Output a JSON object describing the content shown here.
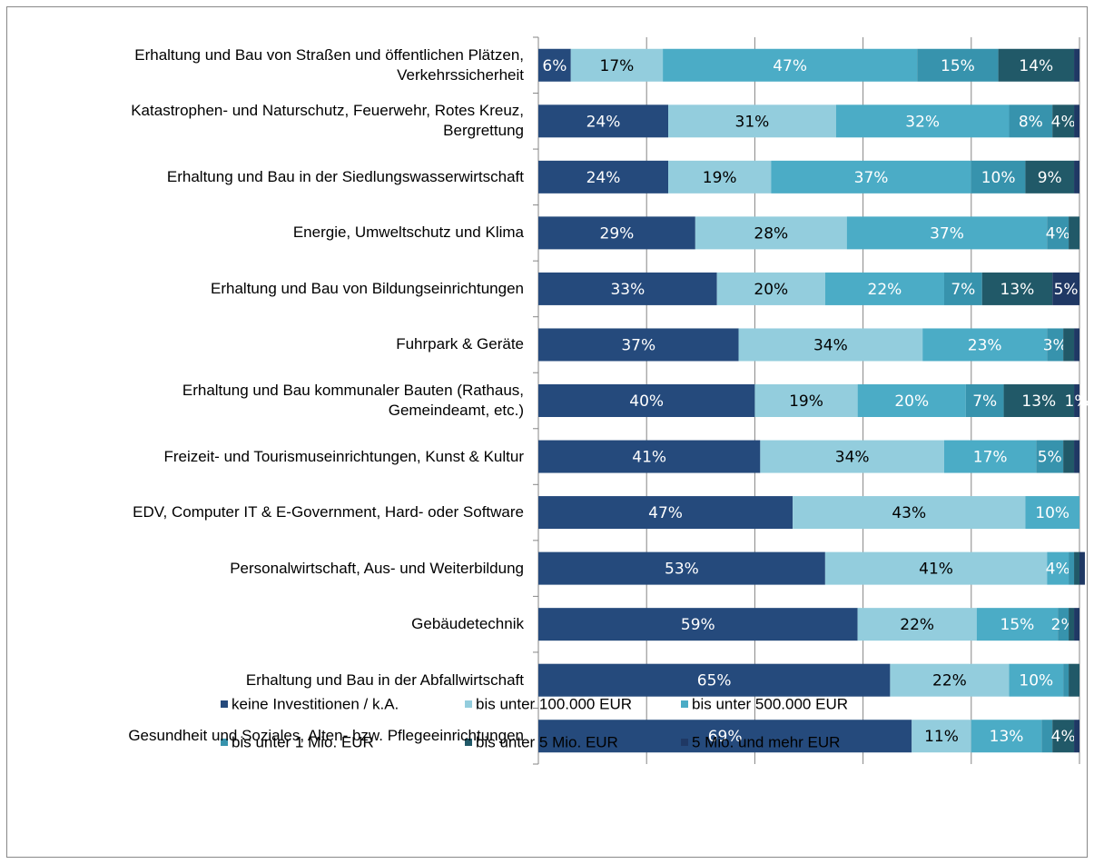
{
  "chart_data": {
    "type": "stacked_barh",
    "categories": [
      "Erhaltung und Bau von Straßen und öffentlichen Plätzen,\nVerkehrssicherheit",
      "Katastrophen- und Naturschutz, Feuerwehr, Rotes Kreuz,\nBergrettung",
      "Erhaltung und Bau in der Siedlungswasserwirtschaft",
      "Energie, Umweltschutz und Klima",
      "Erhaltung und Bau von Bildungseinrichtungen",
      "Fuhrpark & Geräte",
      "Erhaltung und Bau kommunaler Bauten (Rathaus,\nGemeindeamt, etc.)",
      "Freizeit- und Tourismuseinrichtungen, Kunst & Kultur",
      "EDV, Computer IT & E-Government, Hard- oder Software",
      "Personalwirtschaft, Aus- und Weiterbildung",
      "Gebäudetechnik",
      "Erhaltung und Bau in der Abfallwirtschaft",
      "Gesundheit und Soziales, Alten- bzw. Pflegeeinrichtungen"
    ],
    "series": [
      {
        "name": "keine Investitionen / k.A.",
        "color": "#254a7c",
        "values": [
          6,
          24,
          24,
          29,
          33,
          37,
          40,
          41,
          47,
          53,
          59,
          65,
          69
        ],
        "value_labels": [
          "6%",
          "24%",
          "24%",
          "29%",
          "33%",
          "37%",
          "40%",
          "41%",
          "47%",
          "53%",
          "59%",
          "65%",
          "69%"
        ]
      },
      {
        "name": "bis unter 100.000 EUR",
        "color": "#93cddd",
        "values": [
          17,
          31,
          19,
          28,
          20,
          34,
          19,
          34,
          43,
          41,
          22,
          22,
          11
        ],
        "value_labels": [
          "17%",
          "31%",
          "19%",
          "28%",
          "20%",
          "34%",
          "19%",
          "34%",
          "43%",
          "41%",
          "22%",
          "22%",
          "11%"
        ]
      },
      {
        "name": "bis unter 500.000 EUR",
        "color": "#4bacc6",
        "values": [
          47,
          32,
          37,
          37,
          22,
          23,
          20,
          17,
          10,
          4,
          15,
          10,
          13
        ],
        "value_labels": [
          "47%",
          "32%",
          "37%",
          "37%",
          "22%",
          "23%",
          "20%",
          "17%",
          "10%",
          "4%",
          "15%",
          "10%",
          "13%"
        ]
      },
      {
        "name": "bis unter 1 Mio. EUR",
        "color": "#3793ad",
        "values": [
          15,
          8,
          10,
          4,
          7,
          3,
          7,
          5,
          0,
          1,
          2,
          1,
          2
        ],
        "value_labels": [
          "15%",
          "8%",
          "10%",
          "4%",
          "7%",
          "3%",
          "7%",
          "5%",
          null,
          null,
          "2%",
          null,
          null
        ]
      },
      {
        "name": "bis unter 5 Mio. EUR",
        "color": "#215968",
        "values": [
          14,
          4,
          9,
          2,
          13,
          2,
          13,
          2,
          0,
          1,
          1,
          2,
          4
        ],
        "value_labels": [
          "14%",
          "4%",
          "9%",
          null,
          "13%",
          null,
          "13%",
          null,
          null,
          null,
          null,
          null,
          "4%"
        ]
      },
      {
        "name": "5 Mio. und mehr EUR",
        "color": "#1f3864",
        "values": [
          1,
          1,
          1,
          0,
          5,
          1,
          1,
          1,
          0,
          1,
          1,
          0,
          1
        ],
        "value_labels": [
          null,
          null,
          null,
          null,
          "5%",
          null,
          "1%",
          null,
          null,
          null,
          null,
          null,
          null
        ]
      }
    ],
    "xlim": [
      0,
      100
    ],
    "xticks": [
      0,
      20,
      40,
      60,
      80,
      100
    ],
    "grid": true,
    "legend": "bottom"
  }
}
